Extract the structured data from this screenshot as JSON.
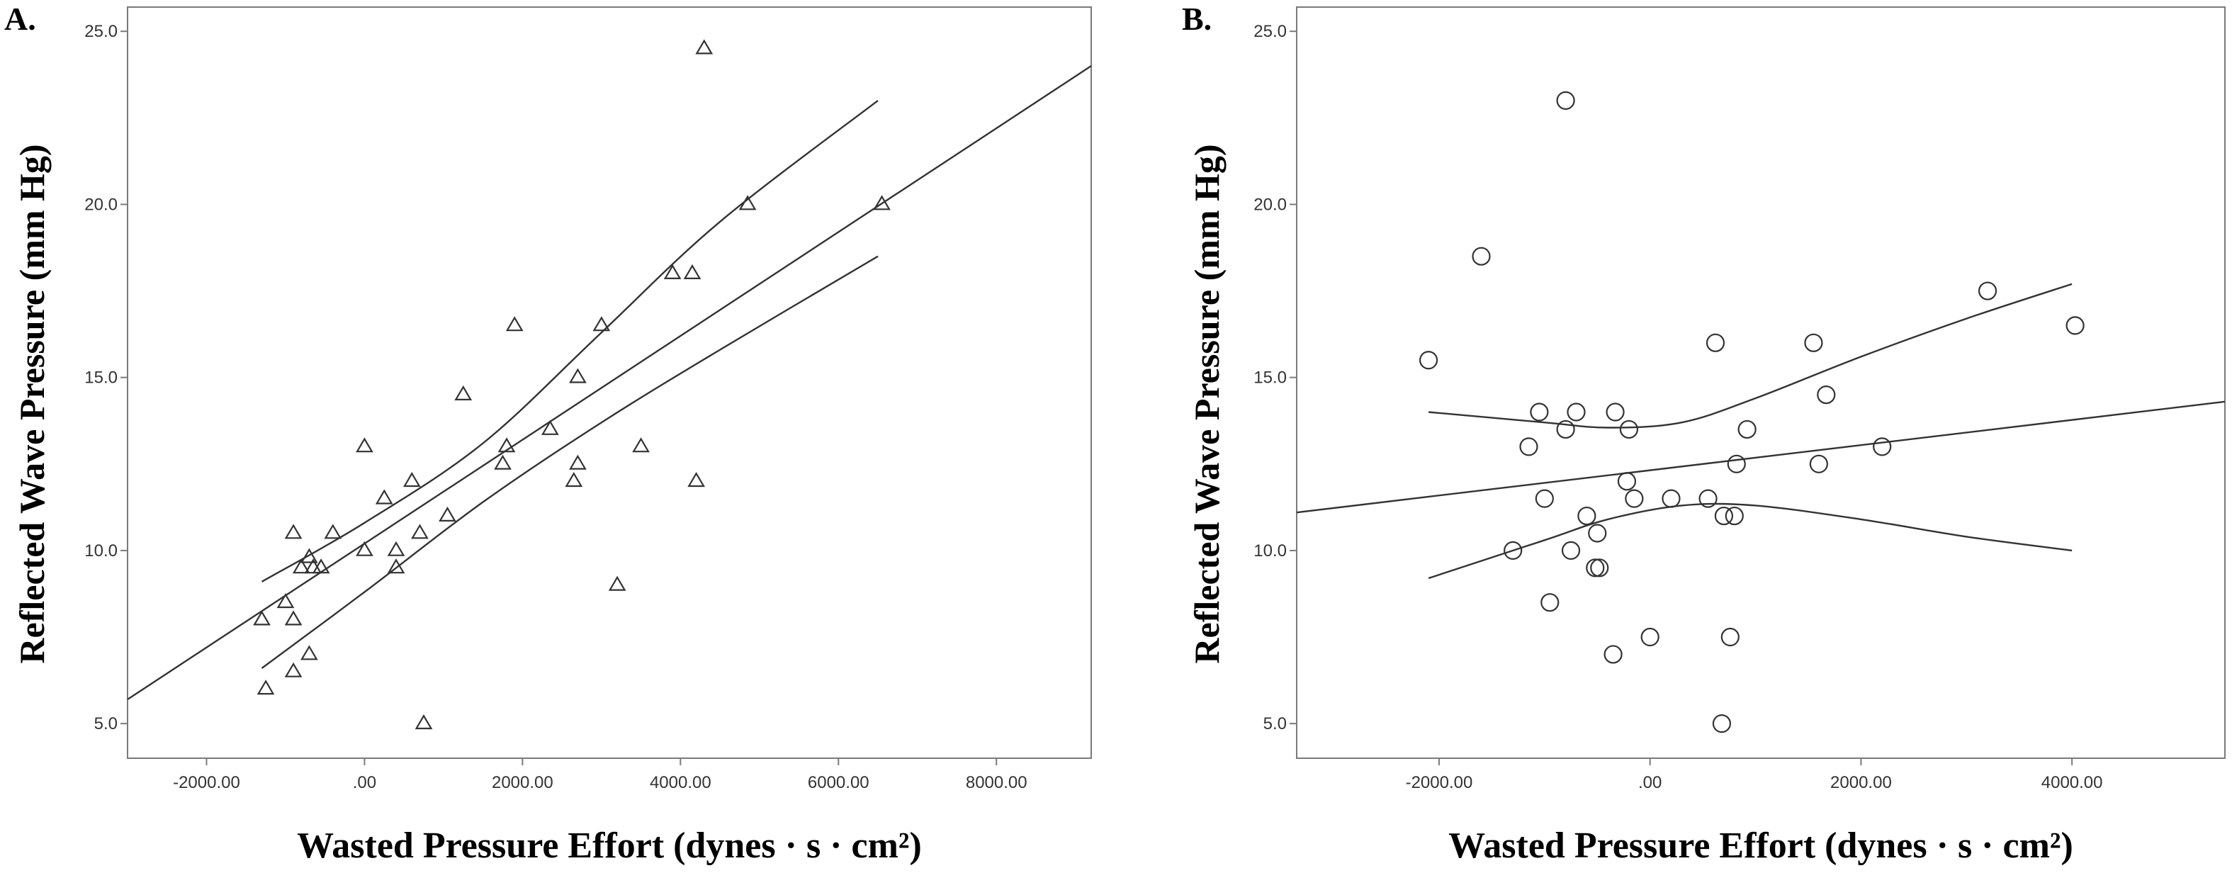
{
  "chart_data": [
    {
      "type": "scatter",
      "panel_label": "A.",
      "xlabel": "Wasted Pressure Effort (dynes · s · cm²)",
      "ylabel": "Reflected Wave Pressure (mm Hg)",
      "xlim": [
        -3000,
        9200
      ],
      "ylim": [
        4.0,
        25.7
      ],
      "xticks": [
        -2000,
        0,
        2000,
        4000,
        6000,
        8000
      ],
      "xtick_labels": [
        "-2000.00",
        ".00",
        "2000.00",
        "4000.00",
        "6000.00",
        "8000.00"
      ],
      "yticks": [
        5,
        10,
        15,
        20,
        25
      ],
      "ytick_labels": [
        "5.0",
        "10.0",
        "15.0",
        "20.0",
        "25.0"
      ],
      "marker": "triangle",
      "grid": false,
      "points": [
        {
          "x": -1300,
          "y": 8.0
        },
        {
          "x": -1250,
          "y": 6.0
        },
        {
          "x": -1000,
          "y": 8.5
        },
        {
          "x": -900,
          "y": 10.5
        },
        {
          "x": -900,
          "y": 8.0
        },
        {
          "x": -900,
          "y": 6.5
        },
        {
          "x": -800,
          "y": 9.5
        },
        {
          "x": -700,
          "y": 9.8
        },
        {
          "x": -700,
          "y": 7.0
        },
        {
          "x": -650,
          "y": 9.5
        },
        {
          "x": -550,
          "y": 9.5
        },
        {
          "x": -400,
          "y": 10.5
        },
        {
          "x": 0,
          "y": 13.0
        },
        {
          "x": 0,
          "y": 10.0
        },
        {
          "x": 250,
          "y": 11.5
        },
        {
          "x": 400,
          "y": 10.0
        },
        {
          "x": 400,
          "y": 9.5
        },
        {
          "x": 600,
          "y": 12.0
        },
        {
          "x": 700,
          "y": 10.5
        },
        {
          "x": 750,
          "y": 5.0
        },
        {
          "x": 1050,
          "y": 11.0
        },
        {
          "x": 1250,
          "y": 14.5
        },
        {
          "x": 1750,
          "y": 12.5
        },
        {
          "x": 1800,
          "y": 13.0
        },
        {
          "x": 1900,
          "y": 16.5
        },
        {
          "x": 2350,
          "y": 13.5
        },
        {
          "x": 2650,
          "y": 12.0
        },
        {
          "x": 2700,
          "y": 15.0
        },
        {
          "x": 2700,
          "y": 12.5
        },
        {
          "x": 3000,
          "y": 16.5
        },
        {
          "x": 3200,
          "y": 9.0
        },
        {
          "x": 3500,
          "y": 13.0
        },
        {
          "x": 3900,
          "y": 18.0
        },
        {
          "x": 4150,
          "y": 18.0
        },
        {
          "x": 4200,
          "y": 12.0
        },
        {
          "x": 4300,
          "y": 24.5
        },
        {
          "x": 4850,
          "y": 20.0
        },
        {
          "x": 6550,
          "y": 20.0
        }
      ],
      "fit_line": [
        {
          "x": -3000,
          "y": 5.7
        },
        {
          "x": 9200,
          "y": 24.0
        }
      ],
      "ci_upper": [
        {
          "x": -1300,
          "y": 9.1
        },
        {
          "x": 0,
          "y": 10.8
        },
        {
          "x": 1500,
          "y": 13.1
        },
        {
          "x": 3000,
          "y": 16.3
        },
        {
          "x": 4500,
          "y": 19.5
        },
        {
          "x": 6500,
          "y": 23.0
        }
      ],
      "ci_lower": [
        {
          "x": -1300,
          "y": 6.6
        },
        {
          "x": 0,
          "y": 8.8
        },
        {
          "x": 1500,
          "y": 11.4
        },
        {
          "x": 3000,
          "y": 13.7
        },
        {
          "x": 4500,
          "y": 15.8
        },
        {
          "x": 6500,
          "y": 18.5
        }
      ]
    },
    {
      "type": "scatter",
      "panel_label": "B.",
      "xlabel": "Wasted Pressure Effort (dynes · s · cm²)",
      "ylabel": "Reflected Wave Pressure (mm Hg)",
      "xlim": [
        -3350,
        5450
      ],
      "ylim": [
        4.0,
        25.7
      ],
      "xticks": [
        -2000,
        0,
        2000,
        4000
      ],
      "xtick_labels": [
        "-2000.00",
        ".00",
        "2000.00",
        "4000.00"
      ],
      "yticks": [
        5,
        10,
        15,
        20,
        25
      ],
      "ytick_labels": [
        "5.0",
        "10.0",
        "15.0",
        "20.0",
        "25.0"
      ],
      "marker": "circle",
      "grid": false,
      "points": [
        {
          "x": -2100,
          "y": 15.5
        },
        {
          "x": -1600,
          "y": 18.5
        },
        {
          "x": -1300,
          "y": 10.0
        },
        {
          "x": -1150,
          "y": 13.0
        },
        {
          "x": -1050,
          "y": 14.0
        },
        {
          "x": -1000,
          "y": 11.5
        },
        {
          "x": -950,
          "y": 8.5
        },
        {
          "x": -800,
          "y": 23.0
        },
        {
          "x": -800,
          "y": 13.5
        },
        {
          "x": -750,
          "y": 10.0
        },
        {
          "x": -700,
          "y": 14.0
        },
        {
          "x": -600,
          "y": 11.0
        },
        {
          "x": -520,
          "y": 9.5
        },
        {
          "x": -500,
          "y": 10.5
        },
        {
          "x": -480,
          "y": 9.5
        },
        {
          "x": -350,
          "y": 7.0
        },
        {
          "x": -330,
          "y": 14.0
        },
        {
          "x": -220,
          "y": 12.0
        },
        {
          "x": -200,
          "y": 13.5
        },
        {
          "x": -150,
          "y": 11.5
        },
        {
          "x": 0,
          "y": 7.5
        },
        {
          "x": 200,
          "y": 11.5
        },
        {
          "x": 550,
          "y": 11.5
        },
        {
          "x": 620,
          "y": 16.0
        },
        {
          "x": 680,
          "y": 5.0
        },
        {
          "x": 700,
          "y": 11.0
        },
        {
          "x": 760,
          "y": 7.5
        },
        {
          "x": 800,
          "y": 11.0
        },
        {
          "x": 820,
          "y": 12.5
        },
        {
          "x": 920,
          "y": 13.5
        },
        {
          "x": 1550,
          "y": 16.0
        },
        {
          "x": 1600,
          "y": 12.5
        },
        {
          "x": 1670,
          "y": 14.5
        },
        {
          "x": 2200,
          "y": 13.0
        },
        {
          "x": 3200,
          "y": 17.5
        },
        {
          "x": 4030,
          "y": 16.5
        }
      ],
      "fit_line": [
        {
          "x": -3350,
          "y": 11.1
        },
        {
          "x": 5450,
          "y": 14.3
        }
      ],
      "ci_upper": [
        {
          "x": -2100,
          "y": 14.0
        },
        {
          "x": -1000,
          "y": 13.7
        },
        {
          "x": -400,
          "y": 13.55
        },
        {
          "x": 300,
          "y": 13.7
        },
        {
          "x": 1000,
          "y": 14.4
        },
        {
          "x": 2000,
          "y": 15.6
        },
        {
          "x": 3000,
          "y": 16.7
        },
        {
          "x": 4000,
          "y": 17.7
        }
      ],
      "ci_lower": [
        {
          "x": -2100,
          "y": 9.2
        },
        {
          "x": -1000,
          "y": 10.3
        },
        {
          "x": -400,
          "y": 10.9
        },
        {
          "x": 300,
          "y": 11.3
        },
        {
          "x": 1000,
          "y": 11.3
        },
        {
          "x": 2000,
          "y": 10.9
        },
        {
          "x": 3000,
          "y": 10.4
        },
        {
          "x": 4000,
          "y": 10.0
        }
      ]
    }
  ]
}
